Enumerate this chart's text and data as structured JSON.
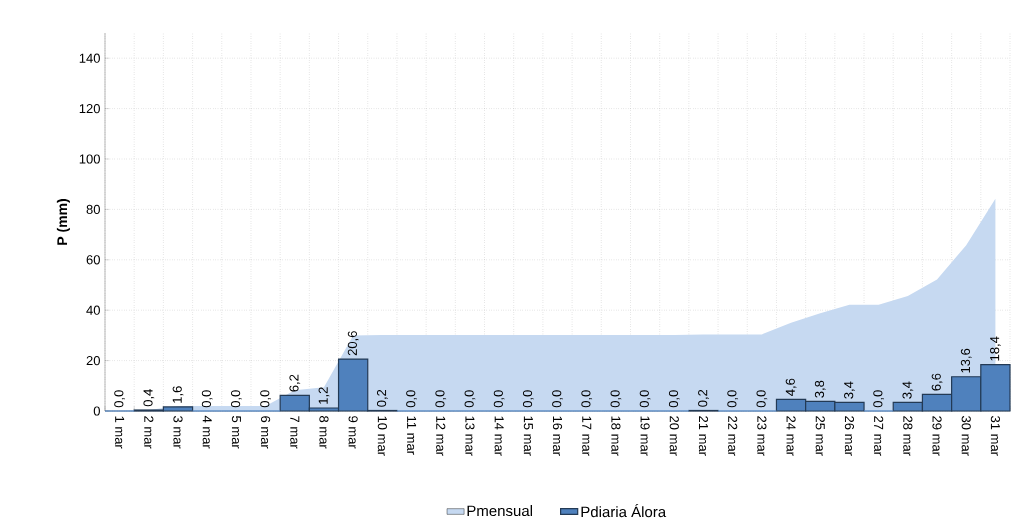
{
  "chart_data": {
    "type": "bar",
    "ylabel": "P (mm)",
    "categories": [
      "1 mar",
      "2 mar",
      "3 mar",
      "4 mar",
      "5 mar",
      "6 mar",
      "7 mar",
      "8 mar",
      "9 mar",
      "10 mar",
      "11 mar",
      "12 mar",
      "13 mar",
      "14 mar",
      "15 mar",
      "16 mar",
      "17 mar",
      "18 mar",
      "19 mar",
      "20 mar",
      "21 mar",
      "22 mar",
      "23 mar",
      "24 mar",
      "25 mar",
      "26 mar",
      "27 mar",
      "28 mar",
      "29 mar",
      "30 mar",
      "31 mar"
    ],
    "series": [
      {
        "name": "Pmensual",
        "type": "area",
        "color": "#c6d9f1",
        "values": [
          0,
          0.4,
          2.0,
          2.0,
          2.0,
          2.0,
          8.2,
          9.4,
          30.0,
          30.2,
          30.2,
          30.2,
          30.2,
          30.2,
          30.2,
          30.2,
          30.2,
          30.2,
          30.2,
          30.2,
          30.4,
          30.4,
          30.4,
          35.0,
          38.8,
          42.2,
          42.2,
          45.6,
          52.2,
          65.8,
          84.2
        ]
      },
      {
        "name": "Pdiaria Álora",
        "color": "#4f81bd",
        "values": [
          0.0,
          0.4,
          1.6,
          0.0,
          0.0,
          0.0,
          6.2,
          1.2,
          20.6,
          0.2,
          0.0,
          0.0,
          0.0,
          0.0,
          0.0,
          0.0,
          0.0,
          0.0,
          0.0,
          0.0,
          0.2,
          0.0,
          0.0,
          4.6,
          3.8,
          3.4,
          0.0,
          3.4,
          6.6,
          13.6,
          18.4
        ],
        "value_labels": [
          "0,0",
          "0,4",
          "1,6",
          "0,0",
          "0,0",
          "0,0",
          "6,2",
          "1,2",
          "20,6",
          "0,2",
          "0,0",
          "0,0",
          "0,0",
          "0,0",
          "0,0",
          "0,0",
          "0,0",
          "0,0",
          "0,0",
          "0,0",
          "0,2",
          "0,0",
          "0,0",
          "4,6",
          "3,8",
          "3,4",
          "0,0",
          "3,4",
          "6,6",
          "13,6",
          "18,4"
        ]
      }
    ],
    "ylim": [
      0,
      150
    ],
    "yticks": [
      0,
      20,
      40,
      60,
      80,
      100,
      120,
      140
    ],
    "grid": true,
    "legend": "bottom"
  }
}
